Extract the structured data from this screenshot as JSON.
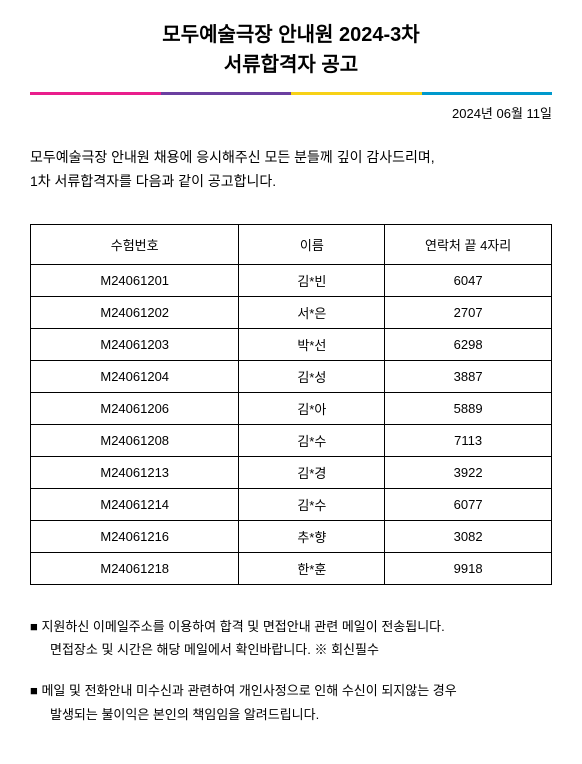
{
  "title_line1": "모두예술극장 안내원 2024-3차",
  "title_line2": "서류합격자 공고",
  "color_bar": {
    "segments": [
      "#e91e8c",
      "#6b3fa0",
      "#f7d117",
      "#0099cc"
    ]
  },
  "date": "2024년 06월 11일",
  "intro_line1": "모두예술극장 안내원 채용에 응시해주신 모든 분들께 깊이 감사드리며,",
  "intro_line2": "1차 서류합격자를 다음과 같이 공고합니다.",
  "table": {
    "headers": [
      "수험번호",
      "이름",
      "연락처 끝 4자리"
    ],
    "rows": [
      [
        "M24061201",
        "김*빈",
        "6047"
      ],
      [
        "M24061202",
        "서*은",
        "2707"
      ],
      [
        "M24061203",
        "박*선",
        "6298"
      ],
      [
        "M24061204",
        "김*성",
        "3887"
      ],
      [
        "M24061206",
        "김*아",
        "5889"
      ],
      [
        "M24061208",
        "김*수",
        "7113"
      ],
      [
        "M24061213",
        "김*경",
        "3922"
      ],
      [
        "M24061214",
        "김*수",
        "6077"
      ],
      [
        "M24061216",
        "추*향",
        "3082"
      ],
      [
        "M24061218",
        "한*훈",
        "9918"
      ]
    ]
  },
  "notes": [
    {
      "lines": [
        "지원하신 이메일주소를 이용하여 합격 및 면접안내 관련 메일이 전송됩니다.",
        "면접장소 및 시간은 해당 메일에서 확인바랍니다.    ※ 회신필수"
      ]
    },
    {
      "lines": [
        "메일 및 전화안내 미수신과 관련하여 개인사정으로 인해 수신이 되지않는 경우",
        "발생되는 불이익은 본인의 책임임을 알려드립니다."
      ]
    }
  ],
  "marker": "■"
}
